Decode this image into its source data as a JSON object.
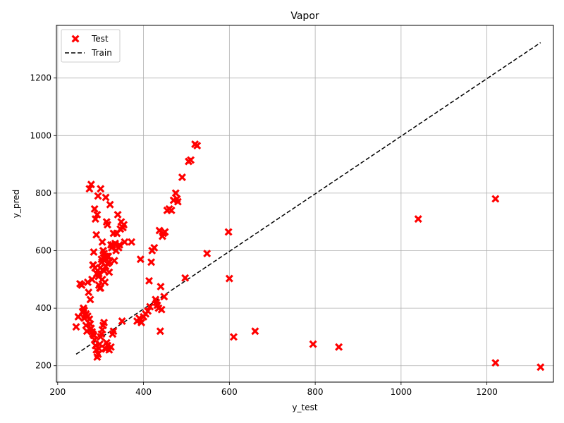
{
  "chart_data": {
    "type": "scatter",
    "title": "Vapor",
    "xlabel": "y_test",
    "ylabel": "y_pred",
    "xlim": [
      197,
      1355
    ],
    "ylim": [
      143,
      1383
    ],
    "xticks": [
      200,
      400,
      600,
      800,
      1000,
      1200
    ],
    "yticks": [
      200,
      400,
      600,
      800,
      1000,
      1200
    ],
    "grid": true,
    "legend_position": "top-left",
    "colors": {
      "test": "#ff0000",
      "train": "#000000",
      "grid": "#b0b0b0"
    },
    "series": [
      {
        "name": "Test",
        "kind": "scatter",
        "marker": "x-filled",
        "points": [
          [
            243,
            335
          ],
          [
            248,
            370
          ],
          [
            252,
            485
          ],
          [
            256,
            480
          ],
          [
            258,
            388
          ],
          [
            260,
            400
          ],
          [
            262,
            365
          ],
          [
            264,
            375
          ],
          [
            266,
            340
          ],
          [
            268,
            320
          ],
          [
            270,
            490
          ],
          [
            272,
            455
          ],
          [
            274,
            815
          ],
          [
            276,
            430
          ],
          [
            278,
            830
          ],
          [
            280,
            500
          ],
          [
            282,
            550
          ],
          [
            284,
            595
          ],
          [
            286,
            745
          ],
          [
            288,
            710
          ],
          [
            290,
            655
          ],
          [
            292,
            725
          ],
          [
            294,
            790
          ],
          [
            296,
            520
          ],
          [
            298,
            470
          ],
          [
            300,
            815
          ],
          [
            302,
            570
          ],
          [
            304,
            630
          ],
          [
            306,
            600
          ],
          [
            308,
            590
          ],
          [
            310,
            490
          ],
          [
            312,
            785
          ],
          [
            314,
            700
          ],
          [
            316,
            690
          ],
          [
            318,
            580
          ],
          [
            320,
            525
          ],
          [
            322,
            760
          ],
          [
            324,
            620
          ],
          [
            326,
            610
          ],
          [
            328,
            620
          ],
          [
            330,
            660
          ],
          [
            332,
            565
          ],
          [
            334,
            625
          ],
          [
            336,
            600
          ],
          [
            338,
            660
          ],
          [
            340,
            725
          ],
          [
            342,
            610
          ],
          [
            344,
            620
          ],
          [
            346,
            675
          ],
          [
            348,
            700
          ],
          [
            350,
            355
          ],
          [
            352,
            680
          ],
          [
            354,
            690
          ],
          [
            356,
            630
          ],
          [
            262,
            392
          ],
          [
            266,
            380
          ],
          [
            270,
            372
          ],
          [
            274,
            362
          ],
          [
            276,
            345
          ],
          [
            278,
            330
          ],
          [
            280,
            318
          ],
          [
            282,
            310
          ],
          [
            284,
            305
          ],
          [
            286,
            290
          ],
          [
            288,
            270
          ],
          [
            290,
            255
          ],
          [
            292,
            230
          ],
          [
            294,
            240
          ],
          [
            296,
            260
          ],
          [
            298,
            275
          ],
          [
            300,
            300
          ],
          [
            302,
            310
          ],
          [
            304,
            325
          ],
          [
            306,
            340
          ],
          [
            308,
            350
          ],
          [
            310,
            260
          ],
          [
            312,
            258
          ],
          [
            314,
            280
          ],
          [
            316,
            270
          ],
          [
            320,
            255
          ],
          [
            324,
            265
          ],
          [
            328,
            310
          ],
          [
            330,
            320
          ],
          [
            283,
            550
          ],
          [
            287,
            540
          ],
          [
            291,
            520
          ],
          [
            295,
            510
          ],
          [
            299,
            540
          ],
          [
            303,
            560
          ],
          [
            307,
            575
          ],
          [
            311,
            580
          ],
          [
            315,
            580
          ],
          [
            296,
            480
          ],
          [
            300,
            470
          ],
          [
            304,
            500
          ],
          [
            308,
            530
          ],
          [
            312,
            545
          ],
          [
            316,
            555
          ],
          [
            320,
            560
          ],
          [
            372,
            630
          ],
          [
            385,
            355
          ],
          [
            390,
            365
          ],
          [
            393,
            570
          ],
          [
            395,
            350
          ],
          [
            400,
            370
          ],
          [
            405,
            380
          ],
          [
            410,
            390
          ],
          [
            413,
            495
          ],
          [
            415,
            405
          ],
          [
            418,
            560
          ],
          [
            420,
            600
          ],
          [
            425,
            610
          ],
          [
            428,
            430
          ],
          [
            430,
            420
          ],
          [
            432,
            410
          ],
          [
            435,
            400
          ],
          [
            437,
            670
          ],
          [
            439,
            320
          ],
          [
            440,
            475
          ],
          [
            442,
            395
          ],
          [
            444,
            650
          ],
          [
            446,
            660
          ],
          [
            448,
            440
          ],
          [
            450,
            665
          ],
          [
            455,
            740
          ],
          [
            460,
            745
          ],
          [
            465,
            740
          ],
          [
            470,
            775
          ],
          [
            475,
            800
          ],
          [
            478,
            780
          ],
          [
            480,
            770
          ],
          [
            490,
            855
          ],
          [
            497,
            505
          ],
          [
            505,
            910
          ],
          [
            510,
            915
          ],
          [
            520,
            970
          ],
          [
            525,
            965
          ],
          [
            548,
            590
          ],
          [
            598,
            665
          ],
          [
            600,
            503
          ],
          [
            610,
            300
          ],
          [
            660,
            320
          ],
          [
            795,
            275
          ],
          [
            855,
            265
          ],
          [
            1040,
            710
          ],
          [
            1220,
            780
          ],
          [
            1220,
            210
          ],
          [
            1325,
            195
          ]
        ]
      },
      {
        "name": "Train",
        "kind": "line",
        "style": "dashed",
        "x": [
          243,
          1325
        ],
        "y": [
          240,
          1323
        ]
      }
    ]
  }
}
